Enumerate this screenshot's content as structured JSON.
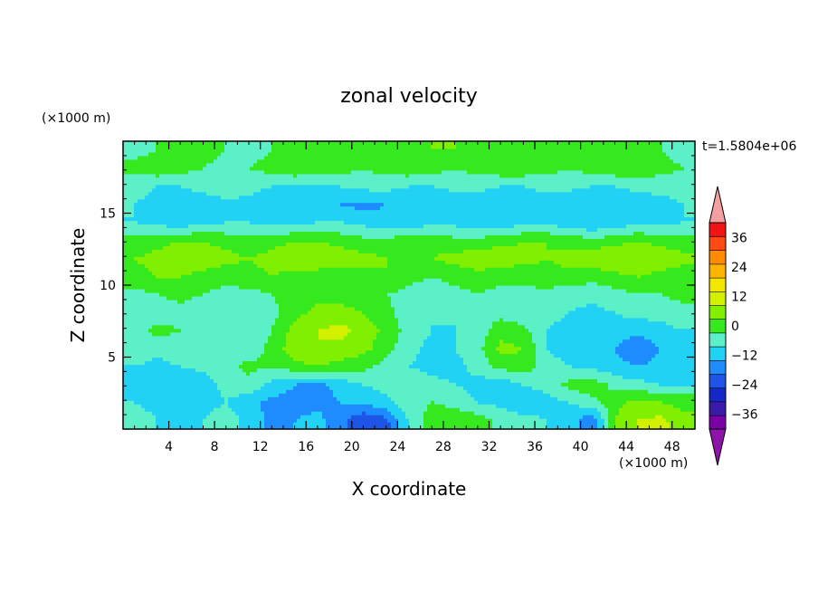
{
  "chart_data": {
    "type": "heatmap",
    "title": "zonal velocity",
    "xlabel": "X coordinate",
    "ylabel": "Z coordinate",
    "x_unit": "(×1000 m)",
    "y_unit": "(×1000 m)",
    "time_label": "t=1.5804e+06",
    "xlim": [
      0,
      50
    ],
    "ylim": [
      0,
      20
    ],
    "x_ticks": [
      4,
      8,
      12,
      16,
      20,
      24,
      28,
      32,
      36,
      40,
      44,
      48
    ],
    "y_ticks": [
      5,
      10,
      15
    ],
    "colorbar": {
      "levels": [
        -42,
        -36,
        -30,
        -24,
        -18,
        -12,
        -6,
        0,
        6,
        12,
        18,
        24,
        30,
        36,
        42
      ],
      "tick_labels": [
        "36",
        "24",
        "12",
        "0",
        "−12",
        "−24",
        "−36"
      ],
      "tick_values": [
        36,
        24,
        12,
        0,
        -12,
        -24,
        -36
      ],
      "colors": [
        "#7a00a8",
        "#3a1aa8",
        "#1428c8",
        "#1e55e6",
        "#1e8cff",
        "#22d2f5",
        "#5cf0c8",
        "#36e81e",
        "#80f000",
        "#d2f000",
        "#f5e600",
        "#ffb400",
        "#ff8c00",
        "#ff4a14",
        "#f01414"
      ],
      "under_color": "#8c14a8",
      "over_color": "#f5a0a0"
    },
    "field": {
      "nx": 25,
      "nz": 16,
      "x": [
        1,
        3,
        5,
        7,
        9,
        11,
        13,
        15,
        17,
        19,
        21,
        23,
        25,
        27,
        29,
        31,
        33,
        35,
        37,
        39,
        41,
        43,
        45,
        47,
        49
      ],
      "z": [
        0.6,
        1.9,
        3.1,
        4.4,
        5.6,
        6.9,
        8.1,
        9.4,
        10.6,
        11.9,
        13.1,
        14.4,
        15.6,
        16.9,
        18.1,
        19.4
      ],
      "values": [
        [
          -3,
          -6,
          -9,
          -6,
          -3,
          -8,
          -14,
          -12,
          -10,
          -16,
          -24,
          -20,
          -5,
          3,
          5,
          3,
          -2,
          -4,
          -6,
          -8,
          -18,
          6,
          12,
          14,
          8
        ],
        [
          -6,
          -8,
          -10,
          -8,
          -6,
          -10,
          -14,
          -14,
          -14,
          -12,
          -10,
          -8,
          -2,
          0,
          -2,
          -6,
          -8,
          -10,
          -8,
          -6,
          -2,
          4,
          8,
          6,
          4
        ],
        [
          -8,
          -10,
          -12,
          -10,
          -4,
          -2,
          -8,
          -12,
          -14,
          -10,
          -6,
          -4,
          -2,
          -4,
          -6,
          -8,
          -10,
          -6,
          -4,
          2,
          4,
          -2,
          -4,
          -6,
          -6
        ],
        [
          -6,
          -8,
          -6,
          -4,
          -2,
          2,
          0,
          4,
          6,
          4,
          2,
          -2,
          -6,
          -8,
          -8,
          -4,
          2,
          4,
          -4,
          -6,
          -8,
          -10,
          -12,
          -10,
          -8
        ],
        [
          -2,
          -4,
          -2,
          -4,
          -6,
          -4,
          2,
          10,
          12,
          10,
          8,
          2,
          -4,
          -8,
          -6,
          -2,
          8,
          6,
          -6,
          -8,
          -10,
          -12,
          -18,
          -12,
          -8
        ],
        [
          -4,
          2,
          0,
          -2,
          -4,
          -6,
          0,
          8,
          12,
          14,
          10,
          4,
          -2,
          -6,
          -6,
          -4,
          4,
          2,
          -6,
          -8,
          -10,
          -8,
          -10,
          -8,
          -6
        ],
        [
          -6,
          -4,
          -2,
          -4,
          -6,
          -6,
          -2,
          4,
          8,
          8,
          6,
          2,
          -4,
          -6,
          -6,
          -4,
          -2,
          -4,
          -4,
          -6,
          -8,
          -6,
          -4,
          -4,
          -2
        ],
        [
          -2,
          0,
          2,
          0,
          -2,
          -2,
          0,
          2,
          4,
          4,
          2,
          0,
          -2,
          -4,
          -2,
          0,
          -2,
          -2,
          -2,
          -4,
          -4,
          -2,
          0,
          0,
          2
        ],
        [
          4,
          6,
          6,
          4,
          2,
          4,
          6,
          4,
          2,
          2,
          4,
          6,
          2,
          0,
          2,
          4,
          2,
          2,
          4,
          4,
          2,
          4,
          6,
          4,
          2
        ],
        [
          6,
          8,
          10,
          10,
          8,
          6,
          8,
          10,
          12,
          10,
          8,
          6,
          4,
          6,
          8,
          10,
          10,
          8,
          6,
          8,
          10,
          12,
          12,
          10,
          8
        ],
        [
          2,
          4,
          6,
          6,
          4,
          2,
          4,
          6,
          6,
          4,
          2,
          2,
          4,
          4,
          2,
          2,
          4,
          6,
          6,
          4,
          2,
          4,
          6,
          4,
          2
        ],
        [
          -6,
          -8,
          -10,
          -8,
          -6,
          -6,
          -8,
          -8,
          -6,
          -6,
          -8,
          -10,
          -10,
          -8,
          -8,
          -10,
          -10,
          -8,
          -8,
          -10,
          -12,
          -10,
          -8,
          -8,
          -6
        ],
        [
          -6,
          -8,
          -10,
          -10,
          -8,
          -8,
          -10,
          -10,
          -10,
          -12,
          -14,
          -12,
          -10,
          -10,
          -12,
          -12,
          -10,
          -10,
          -10,
          -12,
          -12,
          -12,
          -10,
          -8,
          -6
        ],
        [
          -4,
          -6,
          -6,
          -4,
          -2,
          -4,
          -6,
          -6,
          -8,
          -6,
          -4,
          -4,
          -6,
          -6,
          -4,
          -4,
          -6,
          -6,
          -4,
          -4,
          -6,
          -6,
          -4,
          -4,
          -4
        ],
        [
          2,
          4,
          2,
          0,
          -2,
          0,
          2,
          4,
          4,
          2,
          0,
          2,
          4,
          2,
          0,
          2,
          4,
          4,
          2,
          0,
          2,
          4,
          4,
          2,
          0
        ],
        [
          -2,
          0,
          2,
          2,
          0,
          -2,
          0,
          2,
          4,
          4,
          2,
          2,
          4,
          6,
          6,
          4,
          2,
          4,
          6,
          4,
          2,
          4,
          2,
          0,
          -2
        ]
      ]
    }
  }
}
